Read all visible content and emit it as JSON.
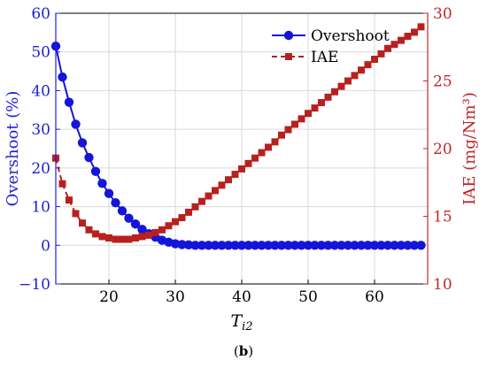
{
  "caption": {
    "open": "(",
    "label": "b",
    "close": ")"
  },
  "chart_data": {
    "type": "line",
    "xlabel": "T",
    "xlabel_sub": "i2",
    "xlim": [
      12,
      68
    ],
    "x_ticks": [
      "20",
      "30",
      "40",
      "50",
      "60"
    ],
    "left_axis": {
      "label": "Overshoot (%)",
      "ylim": [
        -10,
        60
      ],
      "ticks": [
        "−10",
        "0",
        "10",
        "20",
        "30",
        "40",
        "50",
        "60"
      ],
      "color": "#1f1fd6"
    },
    "right_axis": {
      "label": "IAE (mg/Nm³)",
      "ylim": [
        10,
        30
      ],
      "ticks": [
        "10",
        "15",
        "20",
        "25",
        "30"
      ],
      "color": "#c0282a"
    },
    "legend_position": "top-right",
    "x": [
      12,
      13,
      14,
      15,
      16,
      17,
      18,
      19,
      20,
      21,
      22,
      23,
      24,
      25,
      26,
      27,
      28,
      29,
      30,
      31,
      32,
      33,
      34,
      35,
      36,
      37,
      38,
      39,
      40,
      41,
      42,
      43,
      44,
      45,
      46,
      47,
      48,
      49,
      50,
      51,
      52,
      53,
      54,
      55,
      56,
      57,
      58,
      59,
      60,
      61,
      62,
      63,
      64,
      65,
      66,
      67
    ],
    "series": [
      {
        "name": "Overshoot",
        "axis": "left",
        "marker": "circle",
        "color": "#1515d8",
        "values": [
          51.5,
          43.5,
          37.0,
          31.3,
          26.5,
          22.7,
          19.1,
          16.0,
          13.4,
          11.0,
          8.9,
          7.0,
          5.5,
          4.1,
          3.0,
          2.1,
          1.3,
          0.8,
          0.4,
          0.2,
          0.1,
          0,
          0,
          0,
          0,
          0,
          0,
          0,
          0,
          0,
          0,
          0,
          0,
          0,
          0,
          0,
          0,
          0,
          0,
          0,
          0,
          0,
          0,
          0,
          0,
          0,
          0,
          0,
          0,
          0,
          0,
          0,
          0,
          0,
          0,
          0
        ]
      },
      {
        "name": "IAE",
        "axis": "right",
        "marker": "square",
        "color": "#b8201f",
        "line_style": "dashed-then-solid",
        "values": [
          19.3,
          17.4,
          16.2,
          15.2,
          14.5,
          14.0,
          13.7,
          13.5,
          13.4,
          13.3,
          13.3,
          13.3,
          13.4,
          13.5,
          13.6,
          13.8,
          14.0,
          14.3,
          14.6,
          14.9,
          15.3,
          15.7,
          16.1,
          16.5,
          16.9,
          17.3,
          17.7,
          18.1,
          18.5,
          18.9,
          19.3,
          19.7,
          20.1,
          20.5,
          21.0,
          21.4,
          21.8,
          22.2,
          22.6,
          23.0,
          23.4,
          23.8,
          24.2,
          24.6,
          25.0,
          25.4,
          25.8,
          26.2,
          26.6,
          27.0,
          27.4,
          27.7,
          28.0,
          28.3,
          28.6,
          29.0
        ]
      }
    ]
  }
}
